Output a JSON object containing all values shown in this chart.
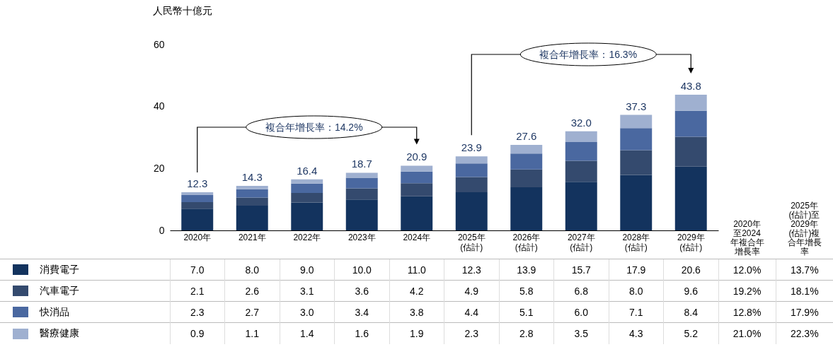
{
  "chart_data": {
    "type": "bar",
    "stacked": true,
    "ylabel": "人民幣十億元",
    "ylim": [
      0,
      60
    ],
    "yticks": [
      0,
      20,
      40,
      60
    ],
    "legend": "bottom",
    "categories": [
      "2020年",
      "2021年",
      "2022年",
      "2023年",
      "2024年",
      "2025年\n(估計)",
      "2026年\n(估計)",
      "2027年\n(估計)",
      "2028年\n(估計)",
      "2029年\n(估計)"
    ],
    "series": [
      {
        "name": "消費電子",
        "color": "#13335e",
        "values": [
          7.0,
          8.0,
          9.0,
          10.0,
          11.0,
          12.3,
          13.9,
          15.7,
          17.9,
          20.6
        ],
        "value_labels": [
          "7.0",
          "8.0",
          "9.0",
          "10.0",
          "11.0",
          "12.3",
          "13.9",
          "15.7",
          "17.9",
          "20.6"
        ]
      },
      {
        "name": "汽車電子",
        "color": "#344a6e",
        "values": [
          2.1,
          2.6,
          3.1,
          3.6,
          4.2,
          4.9,
          5.8,
          6.8,
          8.0,
          9.6
        ],
        "value_labels": [
          "2.1",
          "2.6",
          "3.1",
          "3.6",
          "4.2",
          "4.9",
          "5.8",
          "6.8",
          "8.0",
          "9.6"
        ]
      },
      {
        "name": "快消品",
        "color": "#4a68a0",
        "values": [
          2.3,
          2.7,
          3.0,
          3.4,
          3.8,
          4.4,
          5.1,
          6.0,
          7.1,
          8.4
        ],
        "value_labels": [
          "2.3",
          "2.7",
          "3.0",
          "3.4",
          "3.8",
          "4.4",
          "5.1",
          "6.0",
          "7.1",
          "8.4"
        ]
      },
      {
        "name": "醫療健康",
        "color": "#9fb0d0",
        "values": [
          0.9,
          1.1,
          1.4,
          1.6,
          1.9,
          2.3,
          2.8,
          3.5,
          4.3,
          5.2
        ],
        "value_labels": [
          "0.9",
          "1.1",
          "1.4",
          "1.6",
          "1.9",
          "2.3",
          "2.8",
          "3.5",
          "4.3",
          "5.2"
        ]
      }
    ],
    "totals": [
      "12.3",
      "14.3",
      "16.4",
      "18.7",
      "20.9",
      "23.9",
      "27.6",
      "32.0",
      "37.3",
      "43.8"
    ],
    "annotations": [
      "複合年增長率：14.2%",
      "複合年增長率：16.3%",
      "2020年至2024年複合年增長率",
      "2025年(估計)至2029年(估計)複合年增長率",
      "12.0%",
      "13.7%",
      "19.2%",
      "18.1%",
      "12.8%",
      "17.9%",
      "21.0%",
      "22.3%"
    ]
  }
}
